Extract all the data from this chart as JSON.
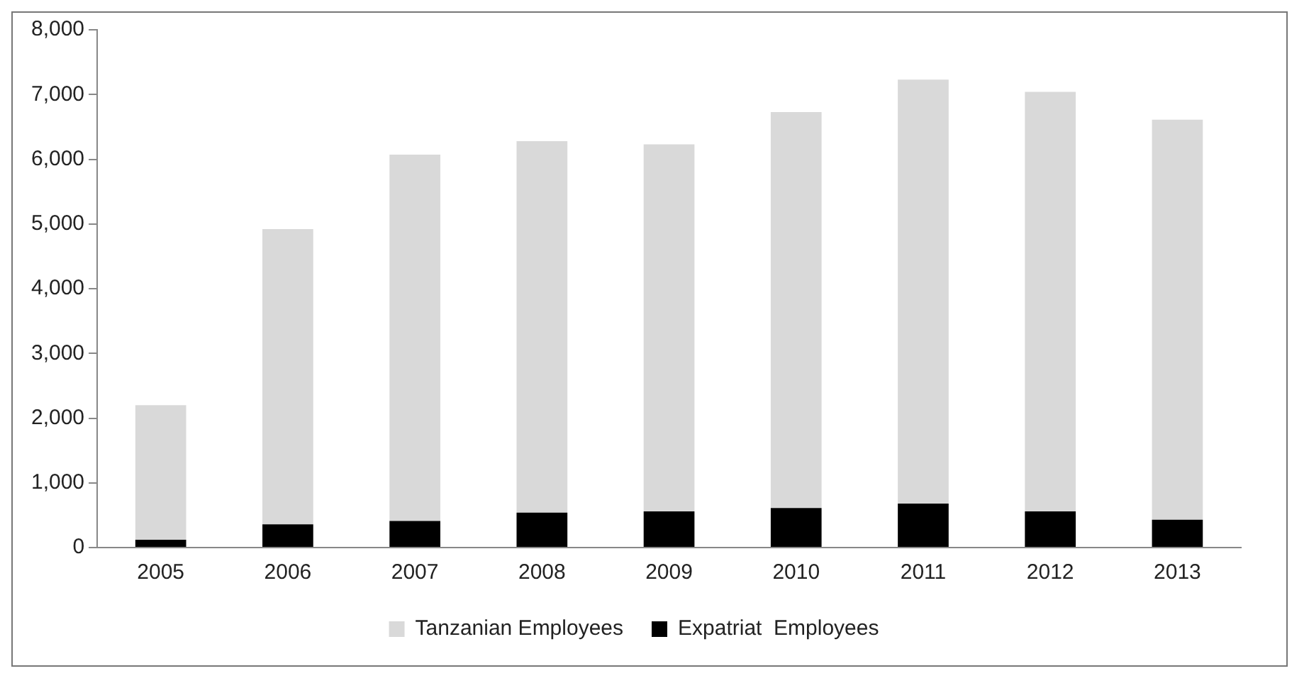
{
  "chart_data": {
    "type": "bar",
    "stacked": true,
    "categories": [
      "2005",
      "2006",
      "2007",
      "2008",
      "2009",
      "2010",
      "2011",
      "2012",
      "2013"
    ],
    "series": [
      {
        "name": "Expatriat  Employees",
        "color": "#000000",
        "values": [
          120,
          360,
          410,
          540,
          560,
          610,
          680,
          560,
          430
        ]
      },
      {
        "name": "Tanzanian Employees",
        "color": "#d9d9d9",
        "values": [
          2080,
          4560,
          5660,
          5740,
          5670,
          6120,
          6550,
          6480,
          6180
        ]
      }
    ],
    "ylim": [
      0,
      8000
    ],
    "yticks": [
      {
        "value": 0,
        "label": "0"
      },
      {
        "value": 1000,
        "label": "1,000"
      },
      {
        "value": 2000,
        "label": "2,000"
      },
      {
        "value": 3000,
        "label": "3,000"
      },
      {
        "value": 4000,
        "label": "4,000"
      },
      {
        "value": 5000,
        "label": "5,000"
      },
      {
        "value": 6000,
        "label": "6,000"
      },
      {
        "value": 7000,
        "label": "7,000"
      },
      {
        "value": 8000,
        "label": "8,000"
      }
    ],
    "grid": false,
    "legend": "bottom"
  }
}
